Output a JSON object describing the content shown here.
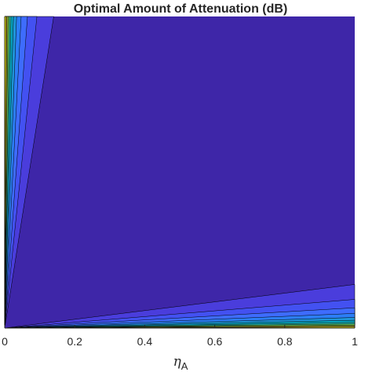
{
  "chart_data": {
    "type": "contour",
    "title": "Optimal Amount of Attenuation (dB)",
    "xlabel": {
      "symbol": "η",
      "subscript": "A"
    },
    "ylabel": "",
    "xlim": [
      0,
      1
    ],
    "ylim": [
      0,
      1
    ],
    "xticks": [
      0,
      0.2,
      0.4,
      0.6,
      0.8,
      1
    ],
    "xtick_labels": [
      "0",
      "0.2",
      "0.4",
      "0.6",
      "0.8",
      "1"
    ],
    "grid": false,
    "colormap": "parula",
    "background_level_color": "#3e26a8",
    "contour_fans": {
      "upper": {
        "origin": [
          0,
          0
        ],
        "edge": "top",
        "boundaries_x": [
          0.003,
          0.006,
          0.009,
          0.013,
          0.018,
          0.025,
          0.034,
          0.047,
          0.065,
          0.092,
          0.14
        ],
        "fills": [
          "#f9fb0e",
          "#e1b92d",
          "#a6be38",
          "#6ccd5a",
          "#2ab4a0",
          "#07a5c2",
          "#1f95d9",
          "#2c7ef6",
          "#3e6cfd",
          "#4351f1",
          "#4a3ddc"
        ]
      },
      "lower": {
        "origin": [
          0,
          0
        ],
        "edge": "right",
        "boundaries_y": [
          0.003,
          0.006,
          0.009,
          0.013,
          0.018,
          0.025,
          0.034,
          0.047,
          0.065,
          0.092,
          0.14
        ],
        "fills": [
          "#f9fb0e",
          "#e1b92d",
          "#a6be38",
          "#6ccd5a",
          "#2ab4a0",
          "#07a5c2",
          "#1f95d9",
          "#2c7ef6",
          "#3e6cfd",
          "#4351f1",
          "#4a3ddc"
        ]
      }
    }
  }
}
